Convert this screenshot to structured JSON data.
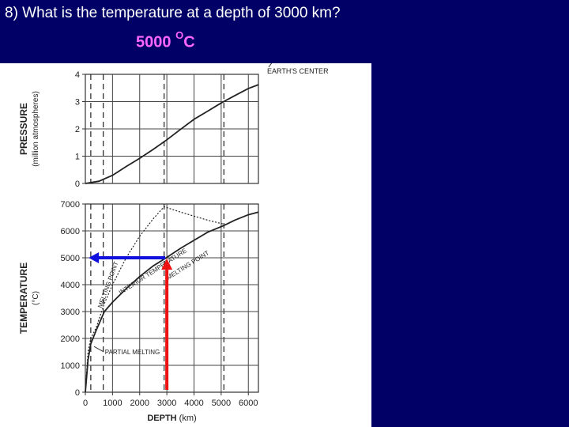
{
  "slide": {
    "question": "8) What is the temperature at a depth of 3000 km?",
    "answer_value": "5000",
    "answer_unit_sup": "O",
    "answer_unit": "C"
  },
  "colors": {
    "background": "#000066",
    "question_text": "#ffffff",
    "answer_text": "#ff66ff",
    "arrow_vertical": "#ee1111",
    "arrow_horizontal": "#1111dd"
  },
  "chart_data": [
    {
      "type": "line",
      "ylabel_main": "PRESSURE",
      "ylabel_sub": "(million atmospheres)",
      "ylim": [
        0,
        4
      ],
      "yticks": [
        "0",
        "1",
        "2",
        "3",
        "4"
      ],
      "xlim": [
        0,
        6371
      ],
      "grid": true,
      "annotation": "EARTH'S CENTER",
      "series": [
        {
          "x": [
            0,
            500,
            1000,
            1500,
            2000,
            2500,
            3000,
            3500,
            4000,
            4500,
            5000,
            5500,
            6000,
            6371
          ],
          "y": [
            0.0,
            0.08,
            0.3,
            0.62,
            0.92,
            1.25,
            1.6,
            1.98,
            2.35,
            2.65,
            2.95,
            3.22,
            3.48,
            3.62
          ]
        }
      ]
    },
    {
      "type": "line",
      "ylabel_main": "TEMPERATURE",
      "ylabel_sub": "(°C)",
      "ylim": [
        0,
        7000
      ],
      "yticks": [
        "0",
        "1000",
        "2000",
        "3000",
        "4000",
        "5000",
        "6000",
        "7000"
      ],
      "xlabel": "DEPTH (km)",
      "xlim": [
        0,
        6371
      ],
      "xticks": [
        "0",
        "1000",
        "2000",
        "3000",
        "4000",
        "5000",
        "6000"
      ],
      "grid": true,
      "series": [
        {
          "style": "solid",
          "x": [
            0,
            100,
            200,
            400,
            700,
            1000,
            1500,
            2000,
            2500,
            2900,
            3500,
            4000,
            4500,
            5100,
            5500,
            6000,
            6371
          ],
          "y": [
            0,
            1200,
            1800,
            2300,
            3000,
            3350,
            3850,
            4300,
            4700,
            4950,
            5350,
            5650,
            5950,
            6200,
            6400,
            6600,
            6700
          ]
        },
        {
          "style": "dotted",
          "x": [
            0,
            100,
            200,
            400,
            700,
            1000,
            1500,
            2000,
            2500,
            2900,
            3500,
            4000,
            4500,
            5100
          ],
          "y": [
            0,
            1500,
            2000,
            2400,
            3300,
            4000,
            5000,
            5800,
            6450,
            6900,
            6700,
            6550,
            6400,
            6250
          ]
        }
      ],
      "labels": {
        "melting_point_left": "MELTING POINT",
        "interior_temperature": "INTERIOR TEMPERATURE",
        "melting_point_right": "MELTING POINT",
        "partial_melting": "PARTIAL MELTING"
      },
      "answer_depth": 3000,
      "answer_temperature": 5000
    }
  ],
  "figure_text": {
    "earth_center": "EARTH'S CENTER",
    "xlabel_main": "DEPTH",
    "xlabel_unit": " (km)"
  }
}
